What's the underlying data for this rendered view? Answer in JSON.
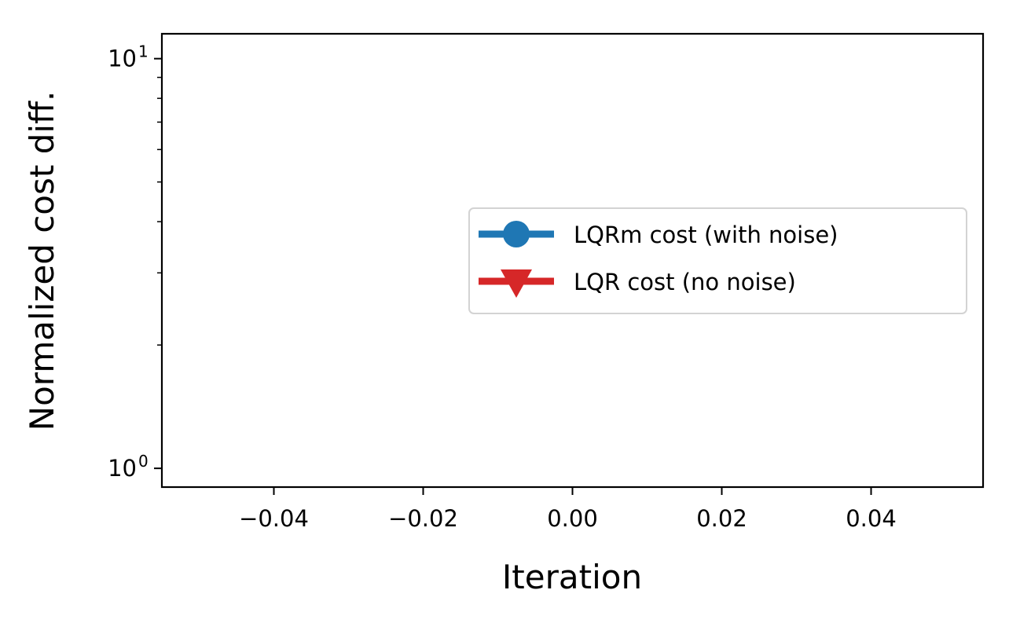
{
  "chart_data": {
    "type": "line",
    "xlabel": "Iteration",
    "ylabel": "Normalized cost diff.",
    "xlim": [
      -0.055,
      0.055
    ],
    "ylim": [
      0.9,
      11.5
    ],
    "yscale": "log",
    "x_ticks": [
      {
        "value": -0.04,
        "label": "−0.04"
      },
      {
        "value": -0.02,
        "label": "−0.02"
      },
      {
        "value": 0.0,
        "label": "0.00"
      },
      {
        "value": 0.02,
        "label": "0.02"
      },
      {
        "value": 0.04,
        "label": "0.04"
      }
    ],
    "y_ticks": [
      {
        "value": 1,
        "base": "10",
        "exp": "0"
      },
      {
        "value": 10,
        "base": "10",
        "exp": "1"
      }
    ],
    "y_minor_ticks": [
      2,
      3,
      4,
      5,
      6,
      7,
      8,
      9
    ],
    "grid": false,
    "legend_position": "right",
    "series": [
      {
        "name": "LQRm cost (with noise)",
        "color": "#1f77b4",
        "marker": "circle",
        "x": [],
        "y": []
      },
      {
        "name": "LQR cost (no noise)",
        "color": "#d62728",
        "marker": "triangle-down",
        "x": [],
        "y": []
      }
    ]
  }
}
